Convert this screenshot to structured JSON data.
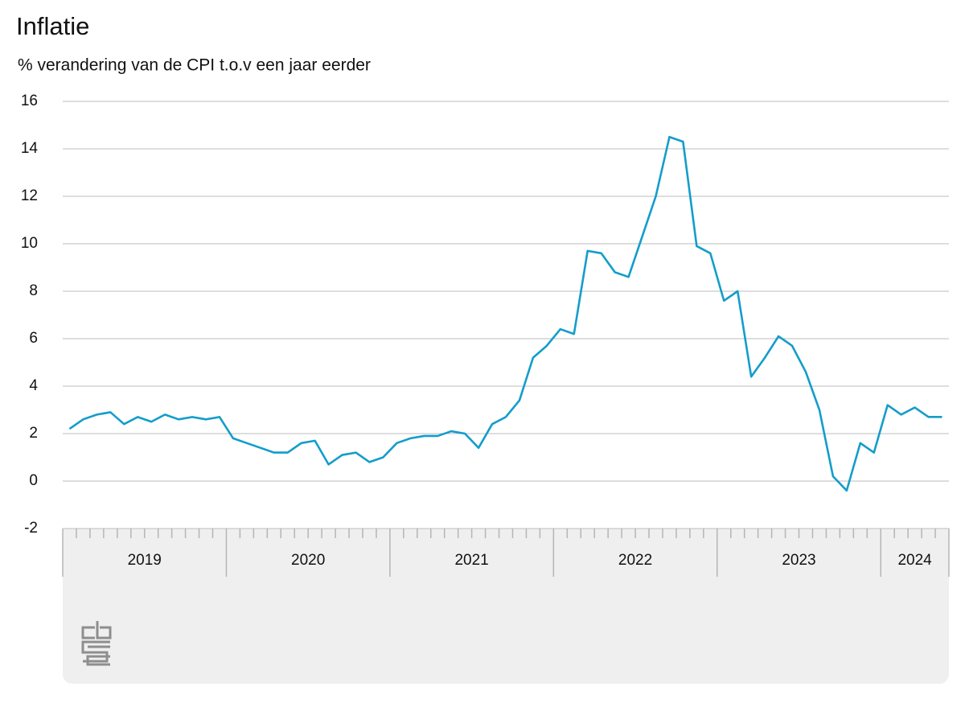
{
  "chart_data": {
    "type": "line",
    "title": "Inflatie",
    "subtitle": "% verandering van de CPI t.o.v een jaar eerder",
    "categories": [
      null,
      null,
      null,
      null,
      null,
      null,
      null,
      null,
      null,
      null,
      null,
      null,
      null,
      null,
      null,
      null,
      null,
      null,
      null,
      null,
      null,
      null,
      null,
      null,
      null,
      null,
      null,
      null,
      null,
      null,
      null,
      null,
      null,
      null,
      null,
      null,
      null,
      null,
      null,
      null,
      null,
      null,
      null,
      null,
      null,
      null,
      null,
      null,
      null,
      null,
      null,
      null,
      null,
      null,
      null,
      null,
      null,
      null,
      null,
      null,
      null,
      null,
      null,
      null,
      null
    ],
    "category_groups": [
      "2019",
      "2020",
      "2021",
      "2022",
      "2023",
      "2024"
    ],
    "series": [
      {
        "color": "#139dcb",
        "values": [
          2.2,
          2.6,
          2.8,
          2.9,
          2.4,
          2.7,
          2.5,
          2.8,
          2.6,
          2.7,
          2.6,
          2.7,
          1.8,
          1.6,
          1.4,
          1.2,
          1.2,
          1.6,
          1.7,
          0.7,
          1.1,
          1.2,
          0.8,
          1.0,
          1.6,
          1.8,
          1.9,
          1.9,
          2.1,
          2.0,
          1.4,
          2.4,
          2.7,
          3.4,
          5.2,
          5.7,
          6.4,
          6.2,
          9.7,
          9.6,
          8.8,
          8.6,
          10.3,
          12.0,
          14.5,
          14.3,
          9.9,
          9.6,
          7.6,
          8.0,
          4.4,
          5.2,
          6.1,
          5.7,
          4.6,
          3.0,
          0.2,
          -0.4,
          1.6,
          1.2,
          3.2,
          2.8,
          3.1,
          2.7,
          2.7
        ]
      }
    ],
    "ylim": [
      -2,
      16
    ],
    "yticks": [
      -2,
      0,
      2,
      4,
      6,
      8,
      10,
      12,
      14,
      16
    ],
    "grid": true
  }
}
